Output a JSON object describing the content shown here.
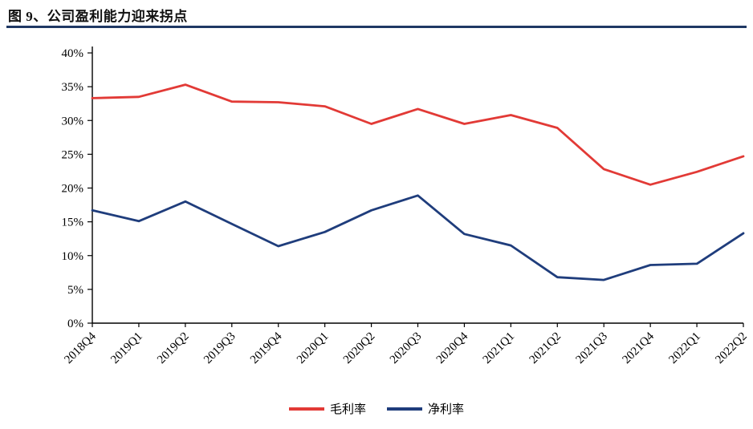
{
  "title": "图 9、公司盈利能力迎来拐点",
  "colors": {
    "title_rule": "#1f3864",
    "axis": "#000000"
  },
  "legend": {
    "items": [
      "毛利率",
      "净利率"
    ]
  },
  "chart_data": {
    "type": "line",
    "title": "图 9、公司盈利能力迎来拐点",
    "categories": [
      "2018Q4",
      "2019Q1",
      "2019Q2",
      "2019Q3",
      "2019Q4",
      "2020Q1",
      "2020Q2",
      "2020Q3",
      "2020Q4",
      "2021Q1",
      "2021Q2",
      "2021Q3",
      "2021Q4",
      "2022Q1",
      "2022Q2"
    ],
    "series": [
      {
        "name": "毛利率",
        "color": "#e23a36",
        "values": [
          33.3,
          33.5,
          35.3,
          32.8,
          32.7,
          32.1,
          29.5,
          31.7,
          29.5,
          30.8,
          28.9,
          22.8,
          20.5,
          22.4,
          24.7
        ]
      },
      {
        "name": "净利率",
        "color": "#1f3d7c",
        "values": [
          16.7,
          15.1,
          18.0,
          14.7,
          11.4,
          13.5,
          16.7,
          18.9,
          13.2,
          11.5,
          6.8,
          6.4,
          8.6,
          8.8,
          13.3
        ]
      }
    ],
    "ylim": [
      0,
      40
    ],
    "ytick_step": 5,
    "ytick_suffix": "%",
    "grid": false,
    "legend_position": "bottom"
  }
}
